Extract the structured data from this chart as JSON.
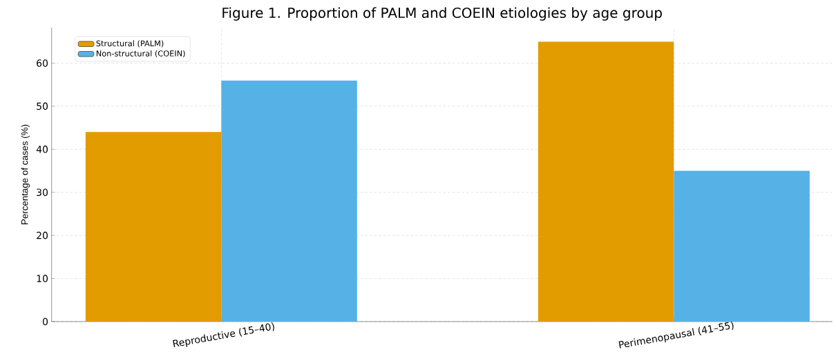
{
  "chart_data": {
    "type": "bar",
    "title": "Figure 1. Proportion of PALM and COEIN etiologies by age group",
    "ylabel": "Percentage of cases (%)",
    "categories": [
      "Reproductive (15–40)",
      "Perimenopausal (41–55)"
    ],
    "series": [
      {
        "name": "Structural (PALM)",
        "color": "#e29c00",
        "values": [
          44,
          65
        ]
      },
      {
        "name": "Non-structural (COEIN)",
        "color": "#56b2e6",
        "values": [
          56,
          35
        ]
      }
    ],
    "ylim": [
      0,
      68.25
    ],
    "yticks": [
      0,
      10,
      20,
      30,
      40,
      50,
      60
    ],
    "grid": true,
    "legend": "top left"
  }
}
